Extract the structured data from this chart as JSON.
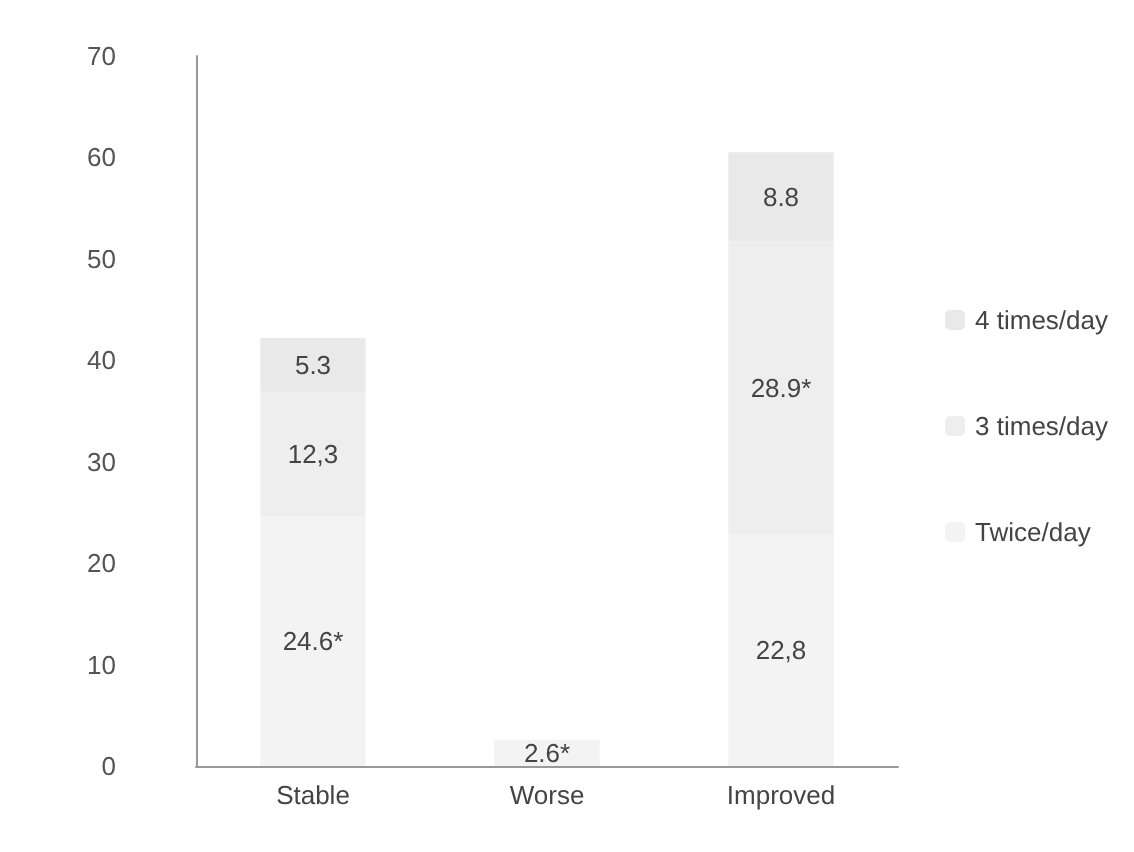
{
  "chart_data": {
    "type": "bar",
    "stacked": true,
    "categories": [
      "Stable",
      "Worse",
      "Improved"
    ],
    "series": [
      {
        "name": "Twice/day",
        "color": "#f3f3f3",
        "values": [
          24.6,
          2.6,
          22.8
        ],
        "value_labels": [
          "24.6*",
          "2.6*",
          "22,8"
        ]
      },
      {
        "name": "3 times/day",
        "color": "#eeeeee",
        "values": [
          12.3,
          null,
          28.9
        ],
        "value_labels": [
          "12,3",
          null,
          "28.9*"
        ]
      },
      {
        "name": "4 times/day",
        "color": "#e9e9e9",
        "values": [
          5.3,
          null,
          8.8
        ],
        "value_labels": [
          "5.3",
          null,
          "8.8"
        ]
      }
    ],
    "ylim": [
      0,
      70
    ],
    "yticks": [
      0,
      10,
      20,
      30,
      40,
      50,
      60,
      70
    ],
    "grid": false,
    "legend": "right"
  }
}
